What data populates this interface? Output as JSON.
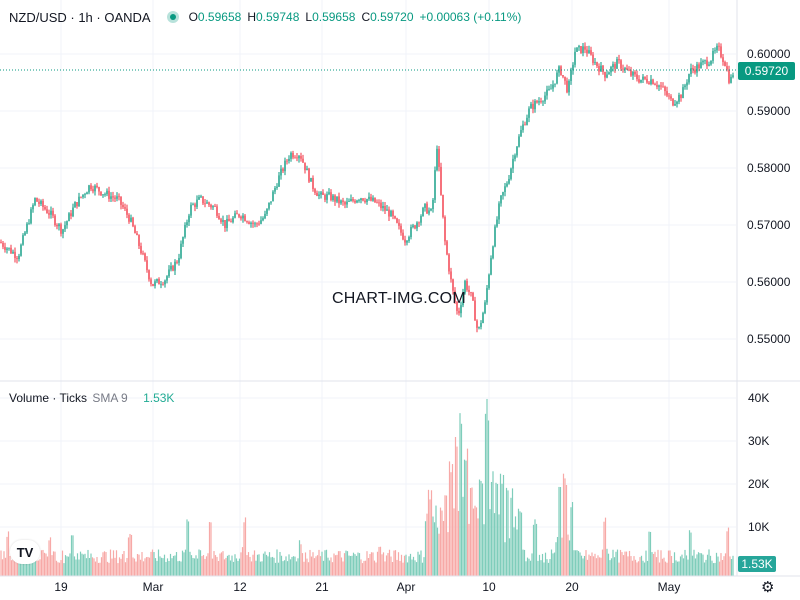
{
  "header": {
    "symbol": "NZD/USD · 1h · OANDA",
    "open_label": "O",
    "open": "0.59658",
    "high_label": "H",
    "high": "0.59748",
    "low_label": "L",
    "low": "0.59658",
    "close_label": "C",
    "close": "0.59720",
    "change": "+0.00063 (+0.11%)"
  },
  "volume_header": {
    "title": "Volume · Ticks",
    "sma": "SMA 9",
    "value": "1.53K"
  },
  "watermark": "CHART-IMG.COM",
  "price_tag": "0.59720",
  "volume_tag": "1.53K",
  "colors": {
    "up": "#089981",
    "down": "#f23645",
    "vol_up": "#7fcdbb",
    "vol_down": "#f7a9a7",
    "grid": "#f0f3fa"
  },
  "chart_data": [
    {
      "type": "candlestick",
      "symbol": "NZD/USD",
      "interval": "1h",
      "x_ticks": [
        "19",
        "Mar",
        "12",
        "21",
        "Apr",
        "10",
        "20",
        "May"
      ],
      "y_ticks": [
        "0.60000",
        "0.59000",
        "0.58000",
        "0.57000",
        "0.56000",
        "0.55000"
      ],
      "ylim": [
        0.5468,
        0.6028
      ],
      "last_price": 0.5972,
      "close_path": [
        [
          0,
          0.567
        ],
        [
          18,
          0.5645
        ],
        [
          35,
          0.5745
        ],
        [
          50,
          0.572
        ],
        [
          62,
          0.569
        ],
        [
          75,
          0.5735
        ],
        [
          90,
          0.577
        ],
        [
          105,
          0.5755
        ],
        [
          118,
          0.5745
        ],
        [
          130,
          0.571
        ],
        [
          140,
          0.566
        ],
        [
          152,
          0.5595
        ],
        [
          165,
          0.5605
        ],
        [
          178,
          0.564
        ],
        [
          190,
          0.573
        ],
        [
          200,
          0.5745
        ],
        [
          215,
          0.573
        ],
        [
          225,
          0.57
        ],
        [
          240,
          0.572
        ],
        [
          255,
          0.57
        ],
        [
          265,
          0.5715
        ],
        [
          278,
          0.578
        ],
        [
          290,
          0.5825
        ],
        [
          300,
          0.5825
        ],
        [
          312,
          0.577
        ],
        [
          320,
          0.575
        ],
        [
          330,
          0.575
        ],
        [
          345,
          0.5735
        ],
        [
          360,
          0.575
        ],
        [
          375,
          0.574
        ],
        [
          390,
          0.572
        ],
        [
          405,
          0.5675
        ],
        [
          415,
          0.57
        ],
        [
          425,
          0.573
        ],
        [
          432,
          0.572
        ],
        [
          437,
          0.584
        ],
        [
          441,
          0.575
        ],
        [
          445,
          0.567
        ],
        [
          452,
          0.559
        ],
        [
          458,
          0.554
        ],
        [
          465,
          0.56
        ],
        [
          472,
          0.557
        ],
        [
          478,
          0.551
        ],
        [
          485,
          0.556
        ],
        [
          492,
          0.566
        ],
        [
          500,
          0.574
        ],
        [
          508,
          0.578
        ],
        [
          515,
          0.583
        ],
        [
          522,
          0.587
        ],
        [
          530,
          0.5905
        ],
        [
          540,
          0.592
        ],
        [
          550,
          0.5935
        ],
        [
          560,
          0.5975
        ],
        [
          568,
          0.5935
        ],
        [
          575,
          0.6005
        ],
        [
          585,
          0.601
        ],
        [
          595,
          0.5985
        ],
        [
          605,
          0.5965
        ],
        [
          618,
          0.5985
        ],
        [
          630,
          0.5965
        ],
        [
          640,
          0.5955
        ],
        [
          652,
          0.5955
        ],
        [
          662,
          0.594
        ],
        [
          672,
          0.5915
        ],
        [
          682,
          0.593
        ],
        [
          690,
          0.597
        ],
        [
          700,
          0.598
        ],
        [
          710,
          0.599
        ],
        [
          718,
          0.601
        ],
        [
          725,
          0.5985
        ],
        [
          730,
          0.595
        ],
        [
          734,
          0.5972
        ]
      ]
    },
    {
      "type": "bar",
      "title": "Volume · Ticks",
      "y_ticks": [
        "40K",
        "30K",
        "20K",
        "10K"
      ],
      "ylim": [
        0,
        43000
      ],
      "baseline": 4000,
      "spikes": [
        [
          8,
          9000
        ],
        [
          50,
          8000
        ],
        [
          72,
          9000
        ],
        [
          130,
          8500
        ],
        [
          188,
          13000
        ],
        [
          210,
          12000
        ],
        [
          245,
          13000
        ],
        [
          300,
          7000
        ],
        [
          380,
          6000
        ],
        [
          430,
          19000
        ],
        [
          446,
          20000
        ],
        [
          451,
          26000
        ],
        [
          456,
          31000
        ],
        [
          461,
          40000
        ],
        [
          466,
          29000
        ],
        [
          471,
          21000
        ],
        [
          476,
          17000
        ],
        [
          481,
          22000
        ],
        [
          487,
          40000
        ],
        [
          492,
          24000
        ],
        [
          497,
          22000
        ],
        [
          502,
          23000
        ],
        [
          507,
          21000
        ],
        [
          512,
          19000
        ],
        [
          520,
          15000
        ],
        [
          535,
          12000
        ],
        [
          560,
          22000
        ],
        [
          565,
          23000
        ],
        [
          572,
          17000
        ],
        [
          605,
          13000
        ],
        [
          650,
          9000
        ],
        [
          690,
          10000
        ],
        [
          728,
          10000
        ]
      ],
      "last_value": 1530
    }
  ]
}
